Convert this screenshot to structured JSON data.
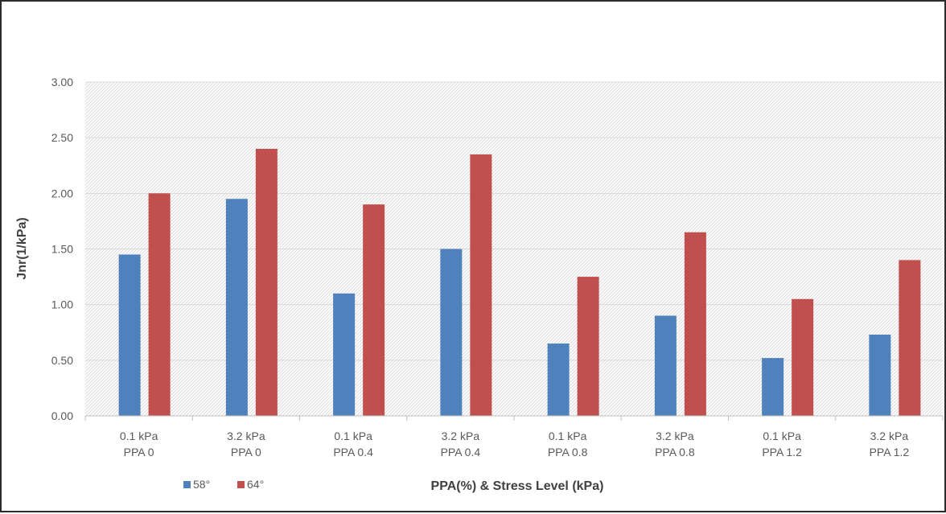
{
  "chart_data": {
    "type": "bar",
    "title": "",
    "xlabel": "PPA(%) & Stress Level (kPa)",
    "ylabel": "Jnr(1/kPa)",
    "ylim": [
      0,
      3
    ],
    "yticks": [
      "0.00",
      "0.50",
      "1.00",
      "1.50",
      "2.00",
      "2.50",
      "3.00"
    ],
    "grid": true,
    "legend_position": "bottom-left",
    "categories": [
      [
        "0.1 kPa",
        "PPA 0"
      ],
      [
        "3.2 kPa",
        "PPA 0"
      ],
      [
        "0.1 kPa",
        "PPA 0.4"
      ],
      [
        "3.2 kPa",
        "PPA 0.4"
      ],
      [
        "0.1 kPa",
        "PPA 0.8"
      ],
      [
        "3.2 kPa",
        "PPA 0.8"
      ],
      [
        "0.1 kPa",
        "PPA 1.2"
      ],
      [
        "3.2 kPa",
        "PPA 1.2"
      ]
    ],
    "series": [
      {
        "name": "58°",
        "color": "#4f81bd",
        "values": [
          1.45,
          1.95,
          1.1,
          1.5,
          0.65,
          0.9,
          0.52,
          0.73
        ]
      },
      {
        "name": "64°",
        "color": "#c0504d",
        "values": [
          2.0,
          2.4,
          1.9,
          2.35,
          1.25,
          1.65,
          1.05,
          1.4
        ]
      }
    ]
  }
}
